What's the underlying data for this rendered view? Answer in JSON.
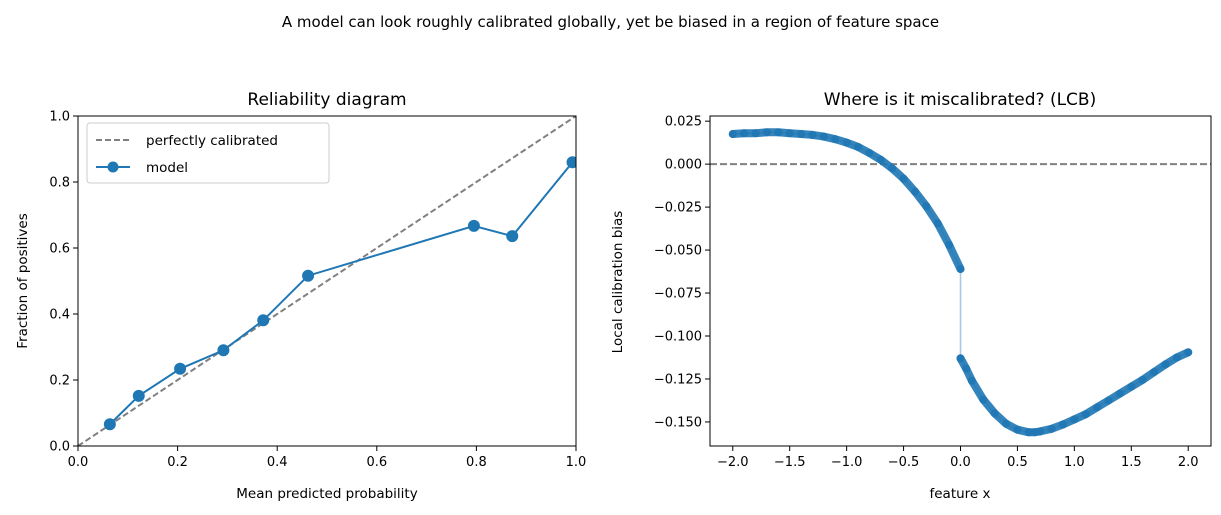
{
  "figure": {
    "suptitle": "A model can look roughly calibrated globally, yet be biased in a region of feature space"
  },
  "chart_data": [
    {
      "type": "line",
      "title": "Reliability diagram",
      "xlabel": "Mean predicted probability",
      "ylabel": "Fraction of positives",
      "xlim": [
        0,
        1
      ],
      "ylim": [
        0,
        1
      ],
      "xticks": [
        0.0,
        0.2,
        0.4,
        0.6,
        0.8,
        1.0
      ],
      "xtick_labels": [
        "0.0",
        "0.2",
        "0.4",
        "0.6",
        "0.8",
        "1.0"
      ],
      "yticks": [
        0.0,
        0.2,
        0.4,
        0.6,
        0.8,
        1.0
      ],
      "ytick_labels": [
        "0.0",
        "0.2",
        "0.4",
        "0.6",
        "0.8",
        "1.0"
      ],
      "grid": false,
      "legend": "top-left",
      "series": [
        {
          "name": "perfectly calibrated",
          "style": "dashed",
          "color": "#808080",
          "x": [
            0,
            1
          ],
          "y": [
            0,
            1
          ]
        },
        {
          "name": "model",
          "style": "line-markers",
          "color": "#1f77b4",
          "x": [
            0.064,
            0.122,
            0.205,
            0.292,
            0.372,
            0.462,
            0.795,
            0.872,
            0.993
          ],
          "y": [
            0.066,
            0.152,
            0.234,
            0.29,
            0.381,
            0.516,
            0.667,
            0.636,
            0.86
          ]
        }
      ]
    },
    {
      "type": "scatter",
      "title": "Where is it miscalibrated? (LCB)",
      "xlabel": "feature x",
      "ylabel": "Local calibration bias",
      "xlim": [
        -2.2,
        2.2
      ],
      "ylim": [
        -0.164,
        0.028
      ],
      "xticks": [
        -2.0,
        -1.5,
        -1.0,
        -0.5,
        0.0,
        0.5,
        1.0,
        1.5,
        2.0
      ],
      "xtick_labels": [
        "−2.0",
        "−1.5",
        "−1.0",
        "−0.5",
        "0.0",
        "0.5",
        "1.0",
        "1.5",
        "2.0"
      ],
      "yticks": [
        0.025,
        0.0,
        -0.025,
        -0.05,
        -0.075,
        -0.1,
        -0.125,
        -0.15
      ],
      "ytick_labels": [
        "0.025",
        "0.000",
        "−0.025",
        "−0.050",
        "−0.075",
        "−0.100",
        "−0.125",
        "−0.150"
      ],
      "grid": false,
      "reference_line": {
        "y": 0,
        "style": "dashed",
        "color": "#808080"
      },
      "series": [
        {
          "name": "",
          "color": "#1f77b4",
          "x": [
            -2.0,
            -1.9,
            -1.8,
            -1.7,
            -1.6,
            -1.5,
            -1.4,
            -1.3,
            -1.2,
            -1.1,
            -1.0,
            -0.9,
            -0.8,
            -0.7,
            -0.6,
            -0.5,
            -0.4,
            -0.3,
            -0.2,
            -0.1,
            0.0,
            0.0,
            0.05,
            0.1,
            0.2,
            0.3,
            0.4,
            0.5,
            0.6,
            0.65,
            0.7,
            0.8,
            0.9,
            1.0,
            1.1,
            1.2,
            1.3,
            1.4,
            1.5,
            1.6,
            1.7,
            1.8,
            1.9,
            2.0
          ],
          "y": [
            0.0175,
            0.018,
            0.018,
            0.0185,
            0.0185,
            0.018,
            0.0175,
            0.017,
            0.016,
            0.0145,
            0.0125,
            0.01,
            0.0065,
            0.0025,
            -0.0025,
            -0.0085,
            -0.016,
            -0.0245,
            -0.0345,
            -0.047,
            -0.061,
            -0.113,
            -0.119,
            -0.126,
            -0.137,
            -0.145,
            -0.151,
            -0.1545,
            -0.156,
            -0.156,
            -0.1555,
            -0.154,
            -0.1515,
            -0.1485,
            -0.1455,
            -0.1415,
            -0.1375,
            -0.1335,
            -0.1295,
            -0.1255,
            -0.121,
            -0.1165,
            -0.1125,
            -0.1095
          ]
        }
      ]
    }
  ]
}
